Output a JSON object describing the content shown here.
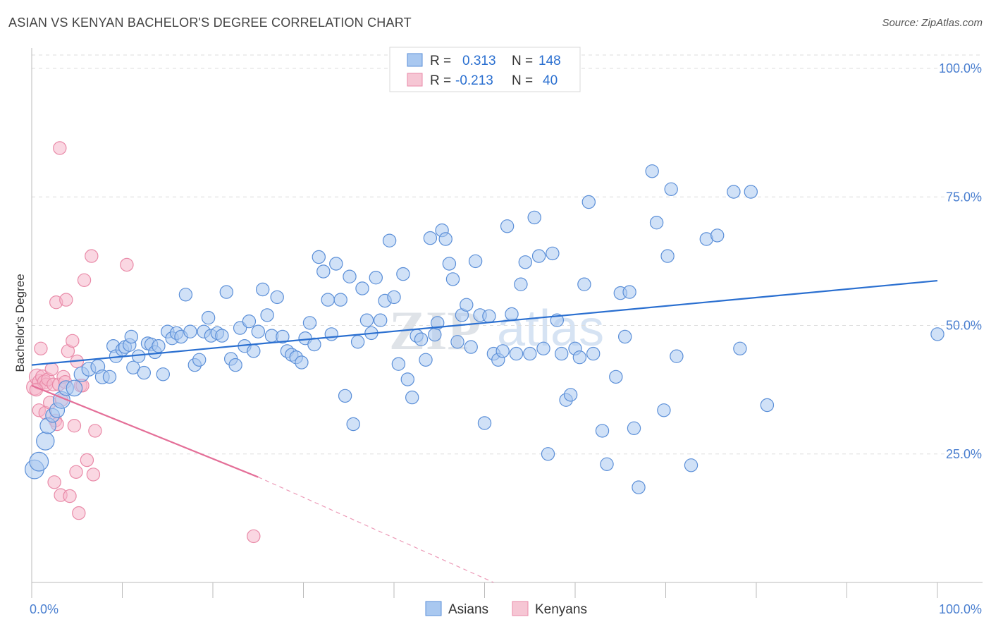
{
  "header": {
    "title": "ASIAN VS KENYAN BACHELOR'S DEGREE CORRELATION CHART",
    "source": "Source: ZipAtlas.com"
  },
  "watermark": {
    "text_zip": "ZIP",
    "text_atlas": "atlas"
  },
  "legend_stats": {
    "r_label": "R =",
    "n_label": "N =",
    "rows": [
      {
        "r": "0.313",
        "n": "148"
      },
      {
        "r": "-0.213",
        "n": "40"
      }
    ]
  },
  "chart_data": {
    "type": "scatter",
    "title": "ASIAN VS KENYAN BACHELOR'S DEGREE CORRELATION CHART",
    "xlabel": "",
    "ylabel": "Bachelor's Degree",
    "xlim": [
      0,
      100
    ],
    "ylim": [
      0,
      102
    ],
    "x_tick_labels": [
      "0.0%",
      "100.0%"
    ],
    "y_ticks": [
      25,
      50,
      75,
      100
    ],
    "y_tick_labels": [
      "25.0%",
      "50.0%",
      "75.0%",
      "100.0%"
    ],
    "grid": true,
    "legend_position": "bottom",
    "colors": {
      "asians_fill": "#a9c8f0",
      "asians_stroke": "#5b8fd8",
      "asians_line": "#2a6fd0",
      "kenyans_fill": "#f6b6ca",
      "kenyans_stroke": "#e98aa8",
      "kenyans_line": "#e46f98",
      "tick_text": "#4a7fd0"
    },
    "series": [
      {
        "name": "Asians",
        "trend": {
          "x": [
            0,
            100
          ],
          "y": [
            42.3,
            58.7
          ]
        },
        "points": [
          [
            0.3,
            22,
            1.9
          ],
          [
            0.8,
            23.5,
            1.9
          ],
          [
            1.5,
            27.5,
            1.8
          ],
          [
            1.8,
            30.5,
            1.6
          ],
          [
            2.3,
            32.5,
            1.4
          ],
          [
            2.8,
            33.5,
            1.5
          ],
          [
            3.3,
            35.5,
            1.7
          ],
          [
            3.8,
            37.8,
            1.5
          ],
          [
            4.7,
            37.8,
            1.6
          ],
          [
            5.5,
            40.5,
            1.5
          ],
          [
            6.3,
            41.5,
            1.4
          ],
          [
            7.3,
            42,
            1.4
          ],
          [
            7.8,
            40,
            1.4
          ],
          [
            8.6,
            40,
            1.3
          ],
          [
            9,
            46,
            1.3
          ],
          [
            9.3,
            44,
            1.3
          ],
          [
            10,
            45.3,
            1.3
          ],
          [
            10.3,
            45.8,
            1.3
          ],
          [
            10.8,
            46.2,
            1.3
          ],
          [
            11,
            47.8,
            1.3
          ],
          [
            11.2,
            41.8,
            1.3
          ],
          [
            11.8,
            44,
            1.3
          ],
          [
            12.4,
            40.8,
            1.3
          ],
          [
            12.8,
            46.5,
            1.3
          ],
          [
            13.2,
            46.3,
            1.3
          ],
          [
            13.6,
            44.8,
            1.3
          ],
          [
            14,
            46,
            1.3
          ],
          [
            14.5,
            40.5,
            1.3
          ],
          [
            15,
            48.8,
            1.3
          ],
          [
            15.5,
            47.5,
            1.3
          ],
          [
            16,
            48.5,
            1.3
          ],
          [
            16.5,
            47.8,
            1.3
          ],
          [
            17,
            56,
            1.3
          ],
          [
            17.5,
            48.8,
            1.3
          ],
          [
            18,
            42.3,
            1.3
          ],
          [
            18.5,
            43.3,
            1.3
          ],
          [
            19,
            48.8,
            1.3
          ],
          [
            19.5,
            51.5,
            1.3
          ],
          [
            19.8,
            48,
            1.3
          ],
          [
            20.5,
            48.5,
            1.3
          ],
          [
            21,
            48,
            1.3
          ],
          [
            21.5,
            56.5,
            1.3
          ],
          [
            22,
            43.5,
            1.3
          ],
          [
            22.5,
            42.3,
            1.3
          ],
          [
            23,
            49.5,
            1.3
          ],
          [
            23.5,
            46,
            1.3
          ],
          [
            24,
            50.8,
            1.3
          ],
          [
            24.5,
            45,
            1.3
          ],
          [
            25,
            48.8,
            1.3
          ],
          [
            25.5,
            57,
            1.3
          ],
          [
            26,
            52,
            1.3
          ],
          [
            26.5,
            48,
            1.3
          ],
          [
            27.1,
            55.5,
            1.3
          ],
          [
            27.7,
            47.8,
            1.3
          ],
          [
            28.2,
            45,
            1.3
          ],
          [
            28.7,
            44.3,
            1.3
          ],
          [
            29.2,
            43.8,
            1.3
          ],
          [
            29.8,
            42.8,
            1.3
          ],
          [
            30.2,
            47.5,
            1.3
          ],
          [
            30.7,
            50.5,
            1.3
          ],
          [
            31.2,
            46.3,
            1.3
          ],
          [
            31.7,
            63.3,
            1.3
          ],
          [
            32.2,
            60.5,
            1.3
          ],
          [
            32.7,
            55,
            1.3
          ],
          [
            33.1,
            48.3,
            1.3
          ],
          [
            33.6,
            62,
            1.3
          ],
          [
            34.1,
            55,
            1.3
          ],
          [
            34.6,
            36.3,
            1.3
          ],
          [
            35.1,
            59.5,
            1.3
          ],
          [
            35.5,
            30.8,
            1.3
          ],
          [
            36,
            46.8,
            1.3
          ],
          [
            36.5,
            57.2,
            1.3
          ],
          [
            37,
            51,
            1.3
          ],
          [
            37.5,
            48.5,
            1.3
          ],
          [
            38,
            59.3,
            1.3
          ],
          [
            38.5,
            51,
            1.3
          ],
          [
            39,
            54.8,
            1.3
          ],
          [
            39.5,
            66.5,
            1.3
          ],
          [
            40,
            55.5,
            1.3
          ],
          [
            40.5,
            42.5,
            1.3
          ],
          [
            41,
            60,
            1.3
          ],
          [
            41.5,
            39.5,
            1.3
          ],
          [
            42,
            36,
            1.3
          ],
          [
            42.5,
            48,
            1.3
          ],
          [
            43,
            47.3,
            1.3
          ],
          [
            43.5,
            43.3,
            1.3
          ],
          [
            44,
            67,
            1.3
          ],
          [
            44.5,
            48.2,
            1.3
          ],
          [
            44.8,
            50.5,
            1.3
          ],
          [
            45.3,
            68.5,
            1.3
          ],
          [
            45.7,
            66.8,
            1.3
          ],
          [
            46.1,
            62,
            1.3
          ],
          [
            46.5,
            59,
            1.3
          ],
          [
            47,
            46.8,
            1.3
          ],
          [
            47.5,
            52,
            1.3
          ],
          [
            48,
            54,
            1.3
          ],
          [
            48.5,
            45.8,
            1.3
          ],
          [
            49,
            62.5,
            1.3
          ],
          [
            49.5,
            52,
            1.3
          ],
          [
            50,
            31,
            1.3
          ],
          [
            50.5,
            51.8,
            1.3
          ],
          [
            51,
            44.5,
            1.3
          ],
          [
            51.5,
            43.3,
            1.3
          ],
          [
            52,
            45,
            1.3
          ],
          [
            52.5,
            69.3,
            1.3
          ],
          [
            53,
            52.2,
            1.3
          ],
          [
            53.5,
            44.5,
            1.3
          ],
          [
            54,
            58,
            1.3
          ],
          [
            54.5,
            62.3,
            1.3
          ],
          [
            55,
            44.5,
            1.3
          ],
          [
            55.5,
            71,
            1.3
          ],
          [
            56,
            63.5,
            1.3
          ],
          [
            56.5,
            45.5,
            1.3
          ],
          [
            57,
            25,
            1.3
          ],
          [
            57.5,
            64,
            1.3
          ],
          [
            58,
            51,
            1.3
          ],
          [
            58.5,
            44.5,
            1.3
          ],
          [
            59,
            35.5,
            1.3
          ],
          [
            59.5,
            36.5,
            1.3
          ],
          [
            60,
            45.5,
            1.3
          ],
          [
            60.5,
            43.8,
            1.3
          ],
          [
            61,
            58,
            1.3
          ],
          [
            61.5,
            74,
            1.3
          ],
          [
            62,
            44.5,
            1.3
          ],
          [
            63,
            29.5,
            1.3
          ],
          [
            63.5,
            23,
            1.3
          ],
          [
            64.5,
            40,
            1.3
          ],
          [
            65,
            56.3,
            1.3
          ],
          [
            65.5,
            47.8,
            1.3
          ],
          [
            66,
            56.5,
            1.3
          ],
          [
            66.5,
            30,
            1.3
          ],
          [
            67,
            18.5,
            1.3
          ],
          [
            68.5,
            80,
            1.3
          ],
          [
            69,
            70,
            1.3
          ],
          [
            69.8,
            33.5,
            1.3
          ],
          [
            70.2,
            63.5,
            1.3
          ],
          [
            70.6,
            76.5,
            1.3
          ],
          [
            71.2,
            44,
            1.3
          ],
          [
            72.8,
            22.8,
            1.3
          ],
          [
            74.5,
            66.8,
            1.3
          ],
          [
            75.7,
            67.5,
            1.3
          ],
          [
            77.5,
            76,
            1.3
          ],
          [
            78.2,
            45.5,
            1.3
          ],
          [
            79.4,
            76,
            1.3
          ],
          [
            81.2,
            34.5,
            1.3
          ],
          [
            100,
            48.3,
            1.3
          ]
        ]
      },
      {
        "name": "Kenyans",
        "trend": {
          "x": [
            0,
            25,
            51
          ],
          "y": [
            38.3,
            20.5,
            0
          ]
        },
        "points": [
          [
            0.3,
            38,
            1.6
          ],
          [
            0.6,
            40,
            1.6
          ],
          [
            0.9,
            39,
            1.5
          ],
          [
            1.2,
            40,
            1.4
          ],
          [
            1.4,
            39,
            1.4
          ],
          [
            1.6,
            38.5,
            1.3
          ],
          [
            1.8,
            39.5,
            1.3
          ],
          [
            0.5,
            37.5,
            1.3
          ],
          [
            0.8,
            33.5,
            1.3
          ],
          [
            1,
            45.5,
            1.3
          ],
          [
            1.5,
            33,
            1.3
          ],
          [
            2,
            35,
            1.3
          ],
          [
            2.2,
            41.5,
            1.3
          ],
          [
            2.4,
            38.5,
            1.3
          ],
          [
            2.6,
            31.5,
            1.3
          ],
          [
            2.8,
            30.8,
            1.3
          ],
          [
            2.5,
            19.5,
            1.3
          ],
          [
            2.7,
            54.5,
            1.3
          ],
          [
            3,
            38.5,
            1.3
          ],
          [
            3.2,
            17,
            1.3
          ],
          [
            3.3,
            35.5,
            1.3
          ],
          [
            3.5,
            40,
            1.3
          ],
          [
            3.7,
            39,
            1.3
          ],
          [
            3.8,
            55,
            1.3
          ],
          [
            4,
            45,
            1.3
          ],
          [
            4.2,
            16.8,
            1.3
          ],
          [
            4.5,
            47,
            1.3
          ],
          [
            4.7,
            30.5,
            1.3
          ],
          [
            4.9,
            21.5,
            1.3
          ],
          [
            5,
            43,
            1.3
          ],
          [
            5.2,
            13.5,
            1.3
          ],
          [
            5.4,
            38.3,
            1.3
          ],
          [
            5.6,
            38.3,
            1.3
          ],
          [
            5.8,
            58.8,
            1.3
          ],
          [
            6.1,
            23.8,
            1.3
          ],
          [
            6.6,
            63.5,
            1.3
          ],
          [
            6.8,
            21,
            1.3
          ],
          [
            7,
            29.5,
            1.3
          ],
          [
            10.5,
            61.8,
            1.3
          ],
          [
            24.5,
            9,
            1.3
          ],
          [
            3.1,
            84.5,
            1.3
          ]
        ]
      }
    ]
  }
}
